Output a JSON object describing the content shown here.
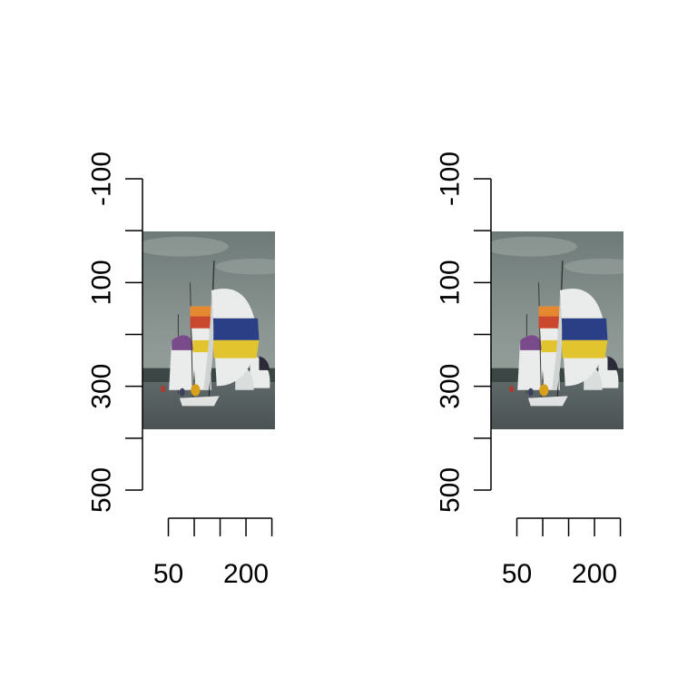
{
  "chart_data": [
    {
      "type": "image",
      "title": "",
      "xlabel": "",
      "ylabel": "",
      "xlim": [
        -50,
        250
      ],
      "ylim": [
        500,
        -100
      ],
      "xticks": [
        50,
        100,
        150,
        200,
        250
      ],
      "xticklabels": [
        "50",
        "",
        "",
        "200",
        ""
      ],
      "yticks": [
        -100,
        0,
        100,
        200,
        300,
        400,
        500
      ],
      "yticklabels": [
        "-100",
        "",
        "100",
        "",
        "300",
        "",
        "500"
      ],
      "image": {
        "x_range": [
          0,
          256
        ],
        "y_range": [
          0,
          384
        ],
        "subject": "sailboats with spinnakers"
      }
    },
    {
      "type": "image",
      "title": "",
      "xlabel": "",
      "ylabel": "",
      "xlim": [
        -50,
        250
      ],
      "ylim": [
        500,
        -100
      ],
      "xticks": [
        50,
        100,
        150,
        200,
        250
      ],
      "xticklabels": [
        "50",
        "",
        "",
        "200",
        ""
      ],
      "yticks": [
        -100,
        0,
        100,
        200,
        300,
        400,
        500
      ],
      "yticklabels": [
        "-100",
        "",
        "100",
        "",
        "300",
        "",
        "500"
      ],
      "image": {
        "x_range": [
          0,
          256
        ],
        "y_range": [
          0,
          384
        ],
        "subject": "sailboats with spinnakers"
      }
    }
  ],
  "colors": {
    "sky": "#7e8a86",
    "cloud": "#a3aca8",
    "water": "#565e5f",
    "land": "#3c4745",
    "sail_white": "#e9ecea",
    "sail_blue": "#2b3f86",
    "sail_yellow": "#e2c52e",
    "sail_red": "#c9482e",
    "sail_orange": "#e5892f",
    "sail_purple": "#7a4b8a",
    "axis": "#000000"
  }
}
